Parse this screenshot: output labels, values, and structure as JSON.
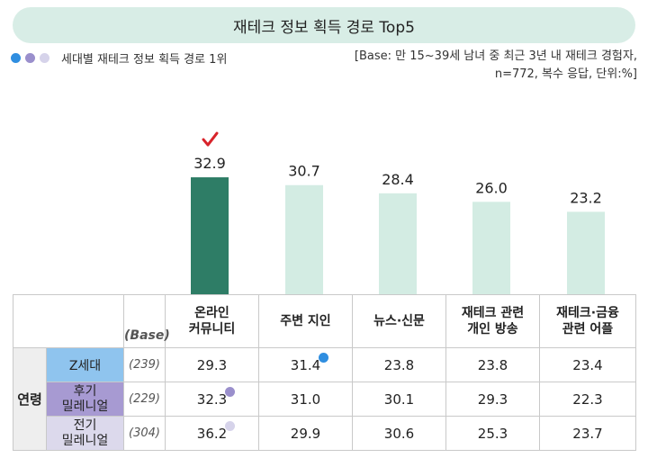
{
  "title": "재테크 정보 획득 경로 Top5",
  "legend": {
    "label": "세대별 재테크 정보 획득 경로 1위",
    "dots": [
      "#2f8ee0",
      "#9a8fcc",
      "#d6d3ea"
    ]
  },
  "base_note": {
    "line1": "[Base: 만 15~39세 남녀 중 최근 3년 내 재테크 경험자,",
    "line2": "n=772, 복수 응답, 단위:%]"
  },
  "colors": {
    "highlight_bar": "#2e7d66",
    "bar": "#d3ece3",
    "check": "#d8232a"
  },
  "chart_data": {
    "type": "bar",
    "title": "재테크 정보 획득 경로 Top5",
    "categories": [
      "온라인 커뮤니티",
      "주변 지인",
      "뉴스·신문",
      "재테크 관련 개인 방송",
      "재테크·금융 관련 어플"
    ],
    "values": [
      32.9,
      30.7,
      28.4,
      26.0,
      23.2
    ],
    "value_labels": [
      "32.9",
      "30.7",
      "28.4",
      "26.0",
      "23.2"
    ],
    "highlight_index": 0,
    "ylim": [
      0,
      40
    ],
    "unit": "%"
  },
  "table": {
    "base_header": "(Base)",
    "columns": [
      {
        "line1": "온라인",
        "line2": "커뮤니티"
      },
      {
        "line1": "주변 지인",
        "line2": ""
      },
      {
        "line1": "뉴스·신문",
        "line2": ""
      },
      {
        "line1": "재테크 관련",
        "line2": "개인 방송"
      },
      {
        "line1": "재테크·금융",
        "line2": "관련 어플"
      }
    ],
    "group_label": "연령",
    "rows": [
      {
        "segment1": "Z세대",
        "segment2": "",
        "base": "(239)",
        "values": [
          "29.3",
          "31.4",
          "23.8",
          "23.8",
          "23.4"
        ],
        "top_index": 1,
        "dot_color": "#2f8ee0"
      },
      {
        "segment1": "후기",
        "segment2": "밀레니얼",
        "base": "(229)",
        "values": [
          "32.3",
          "31.0",
          "30.1",
          "29.3",
          "22.3"
        ],
        "top_index": 0,
        "dot_color": "#9a8fcc"
      },
      {
        "segment1": "전기",
        "segment2": "밀레니얼",
        "base": "(304)",
        "values": [
          "36.2",
          "29.9",
          "30.6",
          "25.3",
          "23.7"
        ],
        "top_index": 0,
        "dot_color": "#d6d3ea"
      }
    ]
  }
}
